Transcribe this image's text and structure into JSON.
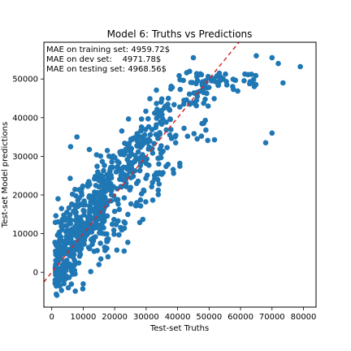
{
  "chart_data": {
    "type": "scatter",
    "title": "Model 6: Truths vs Predictions",
    "xlabel": "Test-set Truths",
    "ylabel": "Test-set Model predictions",
    "xlim": [
      -2500,
      84000
    ],
    "ylim": [
      -9000,
      59500
    ],
    "xticks": [
      0,
      10000,
      20000,
      30000,
      40000,
      50000,
      60000,
      70000,
      80000
    ],
    "yticks": [
      0,
      10000,
      20000,
      30000,
      40000,
      50000
    ],
    "annotations": [
      "MAE on training set: 4959.72$",
      "MAE on dev set:    4971.78$",
      "MAE on testing set: 4968.56$"
    ],
    "reference_line": {
      "label": "y = x",
      "style": "dashed",
      "color": "#d62728"
    },
    "grid": false,
    "marker_color": "#1f77b4",
    "notable_points": [
      {
        "x": 45000,
        "y": 55500
      },
      {
        "x": 65000,
        "y": 56000
      },
      {
        "x": 70000,
        "y": 55500
      },
      {
        "x": 79000,
        "y": 53200
      },
      {
        "x": 72000,
        "y": 54000
      },
      {
        "x": 73500,
        "y": 49000
      },
      {
        "x": 70000,
        "y": 36000
      },
      {
        "x": 68000,
        "y": 33500
      },
      {
        "x": 8000,
        "y": 35000
      },
      {
        "x": 6000,
        "y": 32500
      },
      {
        "x": 2000,
        "y": 19000
      },
      {
        "x": 10000,
        "y": -3000
      },
      {
        "x": 15000,
        "y": 2000
      },
      {
        "x": 23000,
        "y": 5500
      }
    ]
  }
}
